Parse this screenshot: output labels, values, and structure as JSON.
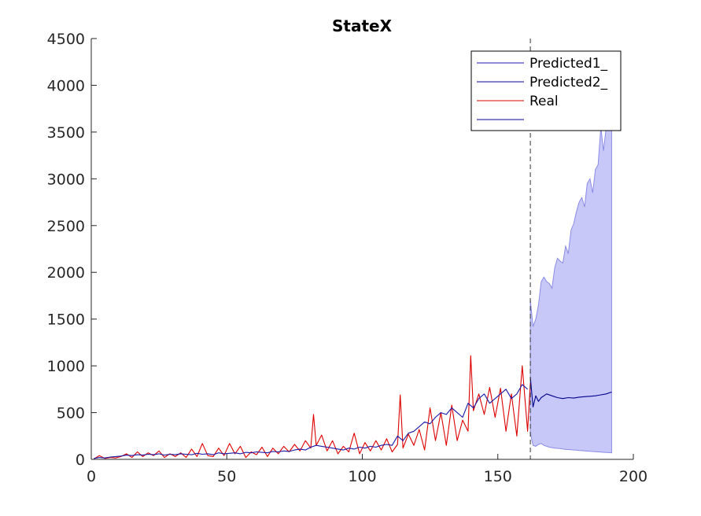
{
  "chart_data": {
    "type": "line",
    "title": "StateX",
    "xlabel": "",
    "ylabel": "",
    "xlim": [
      0,
      200
    ],
    "ylim": [
      0,
      4500
    ],
    "x_ticks": [
      0,
      50,
      100,
      150,
      200
    ],
    "y_ticks": [
      0,
      500,
      1000,
      1500,
      2000,
      2500,
      3000,
      3500,
      4000,
      4500
    ],
    "grid": false,
    "legend_position": "top-right",
    "forecast_start_x": 162,
    "colors": {
      "predicted1": "#1a1aa8",
      "predicted2": "#00008b",
      "real": "#dd0000",
      "band": "#c8c8f8",
      "band_edge": "#8b8be6"
    },
    "series": [
      {
        "name": "Predicted1_",
        "x": [
          1,
          3,
          5,
          7,
          9,
          11,
          13,
          15,
          17,
          19,
          21,
          23,
          25,
          27,
          29,
          31,
          33,
          35,
          37,
          39,
          41,
          43,
          45,
          47,
          49,
          51,
          53,
          55,
          57,
          59,
          61,
          63,
          65,
          67,
          69,
          71,
          73,
          75,
          77,
          79,
          81,
          83,
          85,
          87,
          89,
          91,
          93,
          95,
          97,
          99,
          101,
          103,
          105,
          107,
          109,
          111,
          113,
          115,
          117,
          119,
          121,
          123,
          125,
          127,
          129,
          131,
          133,
          135,
          137,
          139,
          141,
          143,
          145,
          147,
          149,
          151,
          153,
          155,
          157,
          159,
          161
        ],
        "y": [
          10,
          20,
          15,
          25,
          30,
          35,
          45,
          40,
          50,
          45,
          55,
          50,
          60,
          45,
          55,
          50,
          60,
          55,
          50,
          65,
          55,
          60,
          50,
          70,
          60,
          65,
          70,
          60,
          75,
          70,
          80,
          75,
          70,
          85,
          80,
          90,
          85,
          100,
          110,
          100,
          130,
          150,
          140,
          130,
          120,
          110,
          100,
          120,
          110,
          130,
          120,
          140,
          130,
          150,
          160,
          150,
          250,
          200,
          280,
          300,
          350,
          400,
          380,
          450,
          500,
          480,
          550,
          500,
          450,
          600,
          550,
          650,
          700,
          600,
          650,
          700,
          750,
          650,
          700,
          800,
          750
        ]
      },
      {
        "name": "Predicted2_",
        "x": [
          162,
          163,
          164,
          165,
          166,
          168,
          170,
          172,
          174,
          176,
          178,
          180,
          182,
          184,
          186,
          188,
          190,
          192
        ],
        "y": [
          880,
          560,
          680,
          620,
          660,
          700,
          680,
          660,
          650,
          660,
          655,
          665,
          670,
          675,
          680,
          690,
          700,
          720
        ]
      },
      {
        "name": "Real",
        "x": [
          1,
          3,
          5,
          7,
          9,
          11,
          13,
          15,
          17,
          19,
          21,
          23,
          25,
          27,
          29,
          31,
          33,
          35,
          37,
          39,
          41,
          43,
          45,
          47,
          49,
          51,
          53,
          55,
          57,
          59,
          61,
          63,
          65,
          67,
          69,
          71,
          73,
          75,
          77,
          79,
          81,
          82,
          83,
          85,
          87,
          89,
          91,
          93,
          95,
          97,
          99,
          101,
          103,
          105,
          107,
          109,
          111,
          113,
          114,
          115,
          117,
          119,
          121,
          123,
          125,
          127,
          129,
          131,
          133,
          135,
          137,
          139,
          140,
          141,
          143,
          145,
          147,
          149,
          151,
          153,
          155,
          157,
          159,
          161,
          162
        ],
        "y": [
          5,
          40,
          10,
          20,
          15,
          30,
          60,
          20,
          80,
          30,
          70,
          40,
          90,
          20,
          60,
          30,
          70,
          20,
          110,
          30,
          170,
          40,
          30,
          120,
          40,
          170,
          60,
          140,
          20,
          80,
          50,
          130,
          30,
          120,
          60,
          140,
          80,
          160,
          90,
          200,
          120,
          480,
          150,
          260,
          90,
          200,
          60,
          140,
          80,
          280,
          60,
          180,
          90,
          200,
          100,
          220,
          80,
          160,
          690,
          120,
          270,
          150,
          320,
          100,
          550,
          200,
          500,
          150,
          580,
          200,
          420,
          300,
          1110,
          520,
          700,
          480,
          770,
          450,
          760,
          300,
          700,
          250,
          1000,
          300,
          820
        ]
      }
    ],
    "confidence_band": {
      "x": [
        162,
        163,
        164,
        165,
        166,
        167,
        168,
        169,
        170,
        171,
        172,
        173,
        174,
        175,
        176,
        177,
        178,
        179,
        180,
        181,
        182,
        183,
        184,
        185,
        186,
        187,
        188,
        189,
        190,
        191,
        192
      ],
      "upper": [
        1700,
        1420,
        1500,
        1650,
        1900,
        1950,
        1900,
        1880,
        1830,
        2050,
        2150,
        2120,
        2100,
        2280,
        2200,
        2450,
        2520,
        2650,
        2750,
        2800,
        2700,
        2950,
        3000,
        2850,
        3100,
        3150,
        3550,
        3300,
        3550,
        3720,
        3800
      ],
      "lower": [
        280,
        150,
        140,
        160,
        170,
        150,
        140,
        130,
        125,
        120,
        118,
        115,
        110,
        108,
        105,
        103,
        100,
        98,
        95,
        93,
        90,
        88,
        86,
        84,
        82,
        80,
        78,
        76,
        74,
        72,
        70
      ]
    },
    "legend_entries": [
      "Predicted1_",
      "Predicted2_",
      "Real",
      ""
    ]
  }
}
